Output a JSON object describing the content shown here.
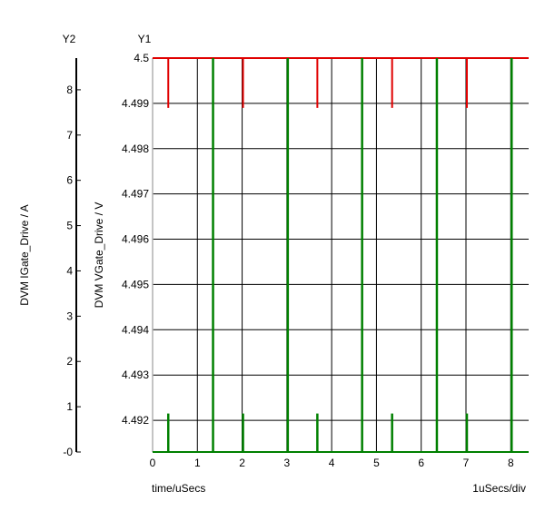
{
  "chart_data": {
    "type": "line",
    "title": "",
    "y2": {
      "label": "Y2",
      "title": "DVM IGate_Drive / A",
      "range": [
        0,
        8.7
      ],
      "ticks": [
        "-0",
        "1",
        "2",
        "3",
        "4",
        "5",
        "6",
        "7",
        "8"
      ]
    },
    "y1": {
      "label": "Y1",
      "title": "DVM VGate_Drive / V",
      "range": [
        4.4913,
        4.5
      ],
      "ticks": [
        "4.492",
        "4.493",
        "4.494",
        "4.495",
        "4.496",
        "4.497",
        "4.498",
        "4.499",
        "4.5"
      ]
    },
    "x": {
      "title": "time/uSecs",
      "units_note": "1uSecs/div",
      "range": [
        0,
        8.4
      ],
      "ticks": [
        "0",
        "1",
        "2",
        "3",
        "4",
        "5",
        "6",
        "7",
        "8"
      ]
    },
    "grid": true,
    "series": [
      {
        "axis": "y1",
        "color": "#e00000",
        "baseline": 4.5,
        "dips": [
          {
            "x": 0.35,
            "y": 4.4989
          },
          {
            "x": 2.02,
            "y": 4.4989
          },
          {
            "x": 3.68,
            "y": 4.4989
          },
          {
            "x": 5.35,
            "y": 4.4989
          },
          {
            "x": 6.35,
            "y": 4.4958
          },
          {
            "x": 7.02,
            "y": 4.4989
          }
        ]
      },
      {
        "axis": "y2",
        "color": "#008000",
        "baseline": 0,
        "pulses": [
          {
            "x": 0.35,
            "y": 0.85
          },
          {
            "x": 1.35,
            "y": 8.7
          },
          {
            "x": 2.02,
            "y": 0.85
          },
          {
            "x": 3.02,
            "y": 8.7
          },
          {
            "x": 3.68,
            "y": 0.85
          },
          {
            "x": 4.68,
            "y": 8.7
          },
          {
            "x": 5.35,
            "y": 0.85
          },
          {
            "x": 6.35,
            "y": 8.7
          },
          {
            "x": 7.02,
            "y": 0.85
          },
          {
            "x": 8.02,
            "y": 8.7
          }
        ]
      }
    ]
  }
}
